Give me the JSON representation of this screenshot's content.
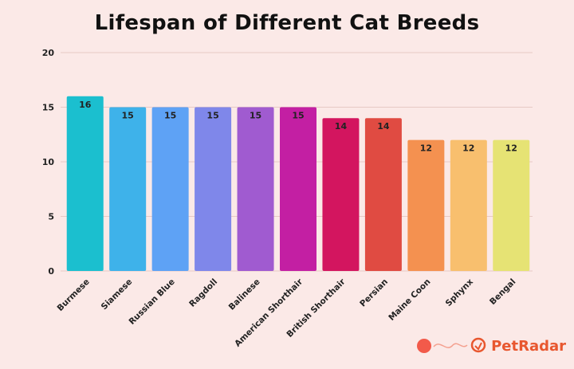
{
  "chart_data": {
    "type": "bar",
    "title": "Lifespan of Different Cat Breeds",
    "categories": [
      "Burmese",
      "Siamese",
      "Russian Blue",
      "Ragdoll",
      "Balinese",
      "American Shorthair",
      "British Shorthair",
      "Persian",
      "Maine Coon",
      "Sphynx",
      "Bengal"
    ],
    "values": [
      16,
      15,
      15,
      15,
      15,
      15,
      14,
      14,
      12,
      12,
      12
    ],
    "value_labels": [
      "16",
      "15",
      "15",
      "15",
      "15",
      "15",
      "14",
      "14",
      "12",
      "12",
      "12"
    ],
    "colors": [
      "#1bbfcf",
      "#3eb2ea",
      "#5ea2f5",
      "#7f87ea",
      "#a05bd0",
      "#c31fa3",
      "#d3155f",
      "#e04b42",
      "#f49150",
      "#f8bf6e",
      "#e6e374"
    ],
    "ylim": [
      0,
      20
    ],
    "yticks": [
      0,
      5,
      10,
      15,
      20
    ],
    "ytick_labels": [
      "0",
      "5",
      "10",
      "15",
      "20"
    ],
    "xlabel": "",
    "ylabel": "",
    "grid": true,
    "legend": "none"
  },
  "brand": {
    "name": "PetRadar",
    "accent": "#e8572f"
  }
}
